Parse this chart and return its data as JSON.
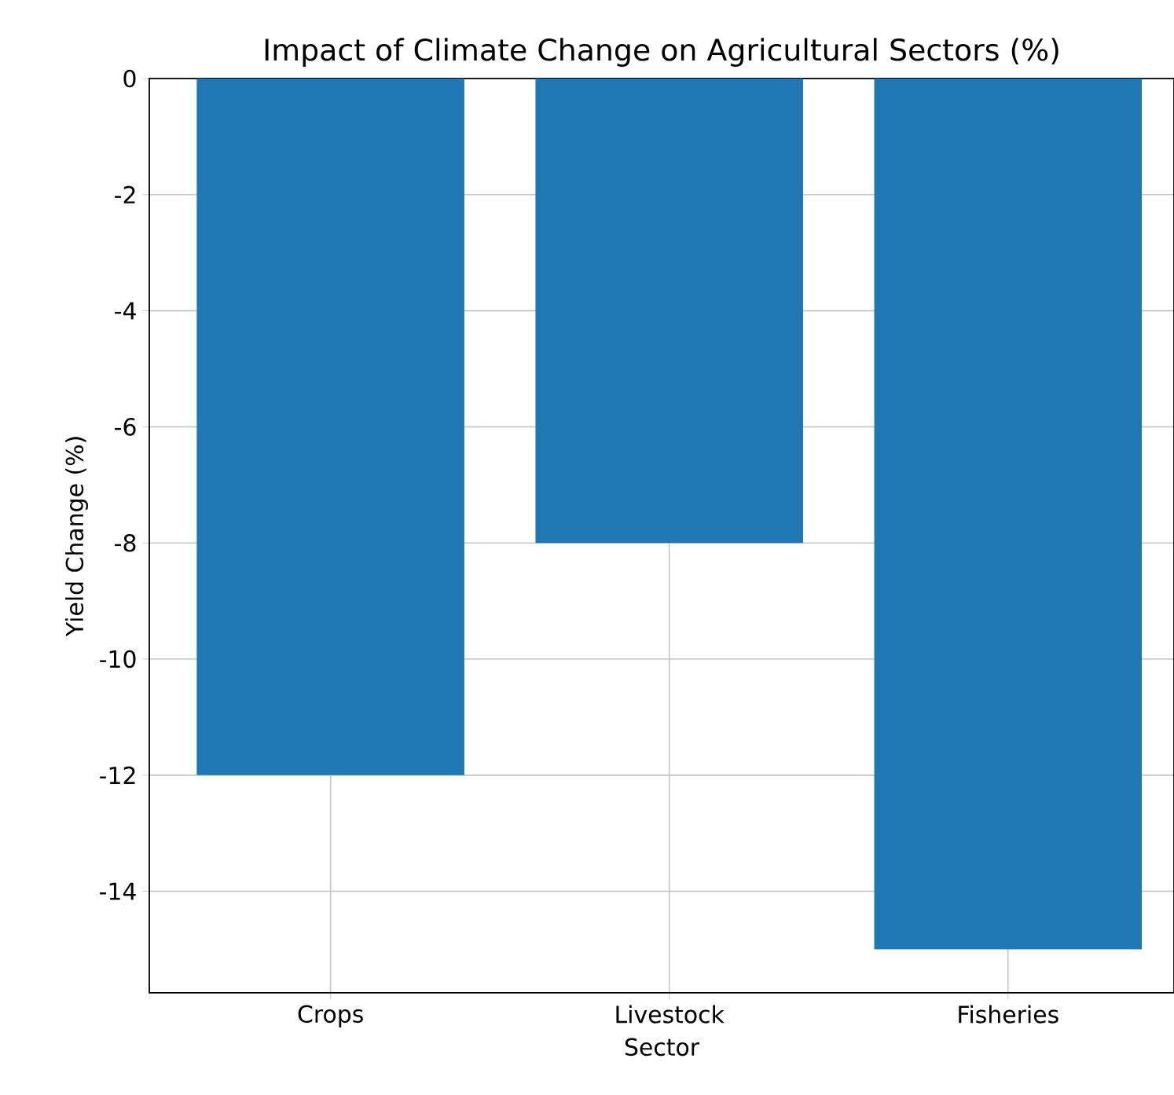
{
  "chart_data": {
    "type": "bar",
    "title": "Impact of Climate Change on Agricultural Sectors (%)",
    "xlabel": "Sector",
    "ylabel": "Yield Change (%)",
    "categories": [
      "Crops",
      "Livestock",
      "Fisheries"
    ],
    "values": [
      -12,
      -8,
      -15
    ],
    "color": "#1f77b4",
    "ylim": [
      -15.75,
      0
    ],
    "yticks": [
      0,
      -2,
      -4,
      -6,
      -8,
      -10,
      -12,
      -14
    ],
    "grid": true
  }
}
